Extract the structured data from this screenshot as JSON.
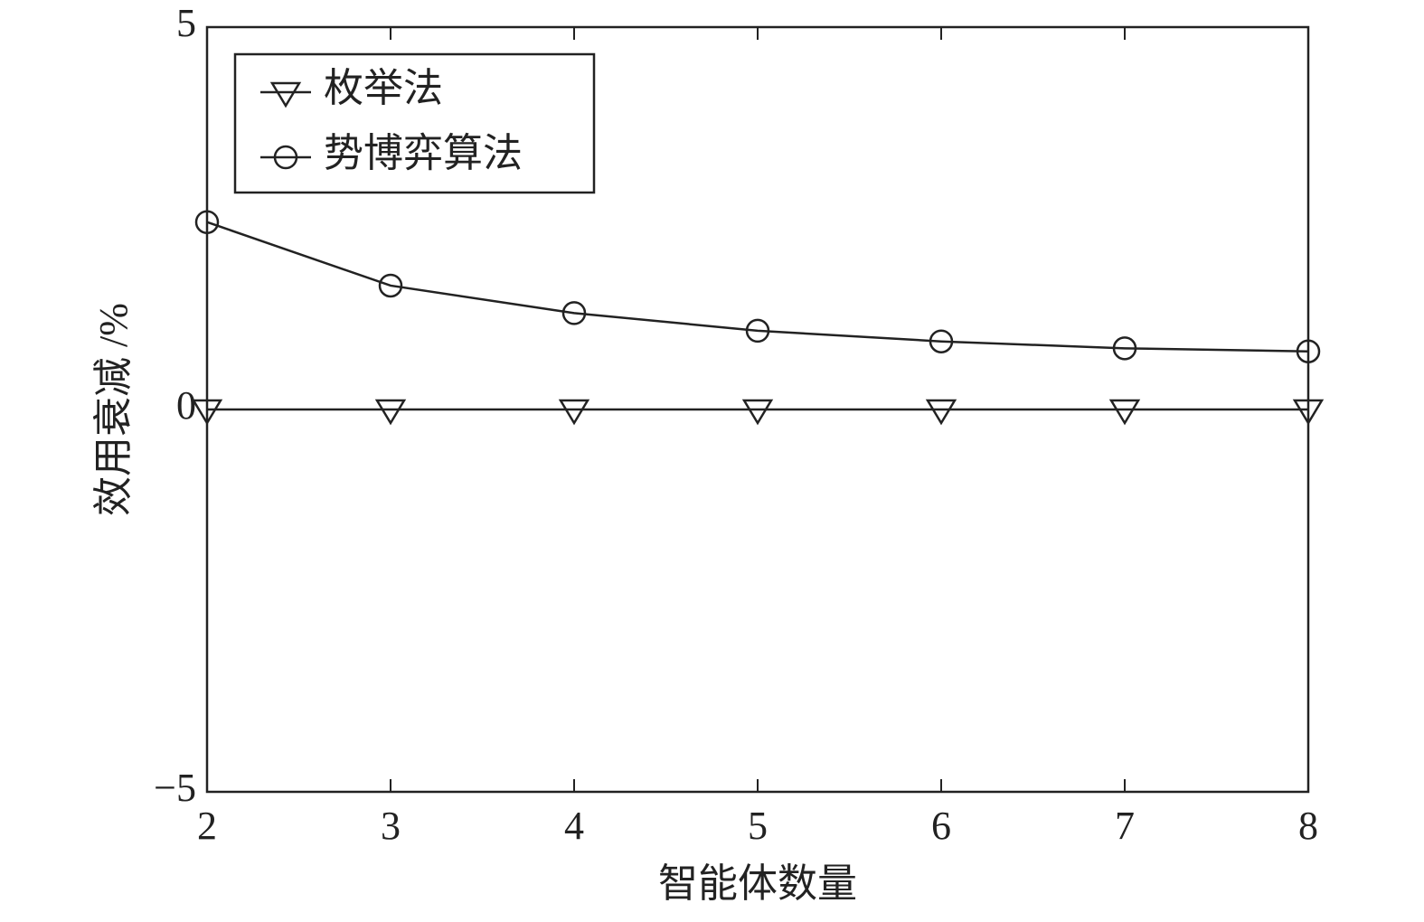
{
  "chart_data": {
    "type": "line",
    "x_label": "智能体数量",
    "y_label": "效用衰减 /%",
    "x": [
      2,
      3,
      4,
      5,
      6,
      7,
      8
    ],
    "series": [
      {
        "name": "枚举法",
        "color": "#222222",
        "marker": "triangle-down",
        "values": [
          0,
          0,
          0,
          0,
          0,
          0,
          0
        ]
      },
      {
        "name": "势博弈算法",
        "color": "#222222",
        "marker": "circle",
        "values": [
          2.45,
          1.62,
          1.26,
          1.03,
          0.89,
          0.8,
          0.76
        ]
      }
    ],
    "xlim": [
      2,
      8
    ],
    "xticks": [
      2,
      3,
      4,
      5,
      6,
      7,
      8
    ],
    "ylim": [
      -5,
      5
    ],
    "yticks": [
      {
        "value": -5,
        "label": "−5"
      },
      0,
      5
    ],
    "grid": false,
    "legend": "upper left"
  }
}
